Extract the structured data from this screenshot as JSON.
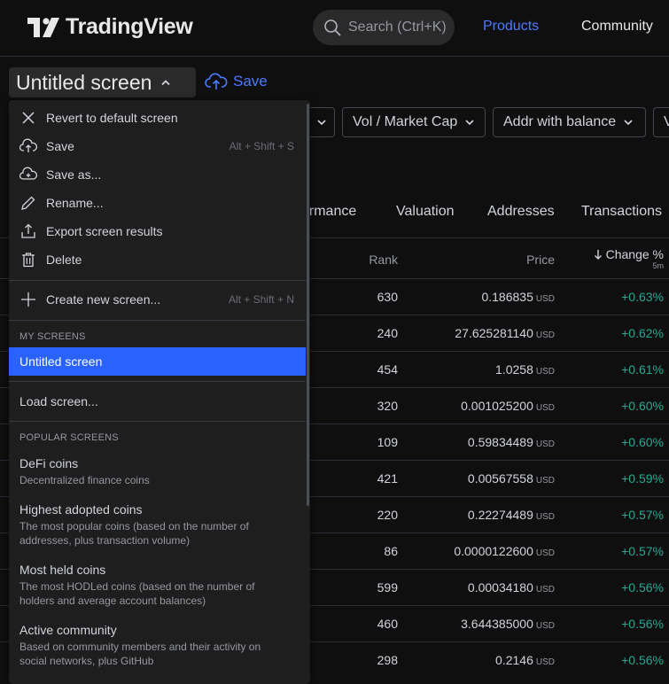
{
  "header": {
    "logo_text": "TradingView",
    "search_placeholder": "Search (Ctrl+K)",
    "nav": [
      "Products",
      "Community"
    ],
    "accent": "#4b7bff"
  },
  "toolbar": {
    "screen_title": "Untitled screen",
    "save_label": "Save"
  },
  "filters": [
    "Vol / Market Cap",
    "Addr with balance"
  ],
  "tabs": [
    "ormance",
    "Valuation",
    "Addresses",
    "Transactions"
  ],
  "table": {
    "headers": {
      "rank": "Rank",
      "price": "Price",
      "change": "Change %",
      "change_sub": "5m"
    },
    "currency": "USD",
    "rows": [
      {
        "rank": "630",
        "price": "0.186835",
        "change": "+0.63%"
      },
      {
        "rank": "240",
        "price": "27.625281140",
        "change": "+0.62%"
      },
      {
        "rank": "454",
        "price": "1.0258",
        "change": "+0.61%"
      },
      {
        "rank": "320",
        "price": "0.001025200",
        "change": "+0.60%"
      },
      {
        "rank": "109",
        "price": "0.59834489",
        "change": "+0.60%"
      },
      {
        "rank": "421",
        "price": "0.00567558",
        "change": "+0.59%"
      },
      {
        "rank": "220",
        "price": "0.22274489",
        "change": "+0.57%"
      },
      {
        "rank": "86",
        "price": "0.0000122600",
        "change": "+0.57%"
      },
      {
        "rank": "599",
        "price": "0.00034180",
        "change": "+0.56%"
      },
      {
        "rank": "460",
        "price": "3.644385000",
        "change": "+0.56%"
      },
      {
        "rank": "298",
        "price": "0.2146",
        "change": "+0.56%"
      }
    ],
    "positive_color": "#22ab94"
  },
  "menu": {
    "items": [
      {
        "label": "Revert to default screen",
        "icon": "close-icon",
        "shortcut": ""
      },
      {
        "label": "Save",
        "icon": "cloud-upload-icon",
        "shortcut": "Alt + Shift + S"
      },
      {
        "label": "Save as...",
        "icon": "cloud-plus-icon",
        "shortcut": ""
      },
      {
        "label": "Rename...",
        "icon": "pencil-icon",
        "shortcut": ""
      },
      {
        "label": "Export screen results",
        "icon": "export-icon",
        "shortcut": ""
      },
      {
        "label": "Delete",
        "icon": "trash-icon",
        "shortcut": ""
      }
    ],
    "create": {
      "label": "Create new screen...",
      "icon": "plus-icon",
      "shortcut": "Alt + Shift + N"
    },
    "my_screens_heading": "MY SCREENS",
    "selected_screen": "Untitled screen",
    "load_label": "Load screen...",
    "popular_heading": "POPULAR SCREENS",
    "popular": [
      {
        "title": "DeFi coins",
        "desc": "Decentralized finance coins"
      },
      {
        "title": "Highest adopted coins",
        "desc": "The most popular coins (based on the number of addresses, plus transaction volume)"
      },
      {
        "title": "Most held coins",
        "desc": "The most HODLed coins (based on the number of holders and average account balances)"
      },
      {
        "title": "Active community",
        "desc": "Based on community members and their activity on social networks, plus GitHub"
      }
    ]
  }
}
